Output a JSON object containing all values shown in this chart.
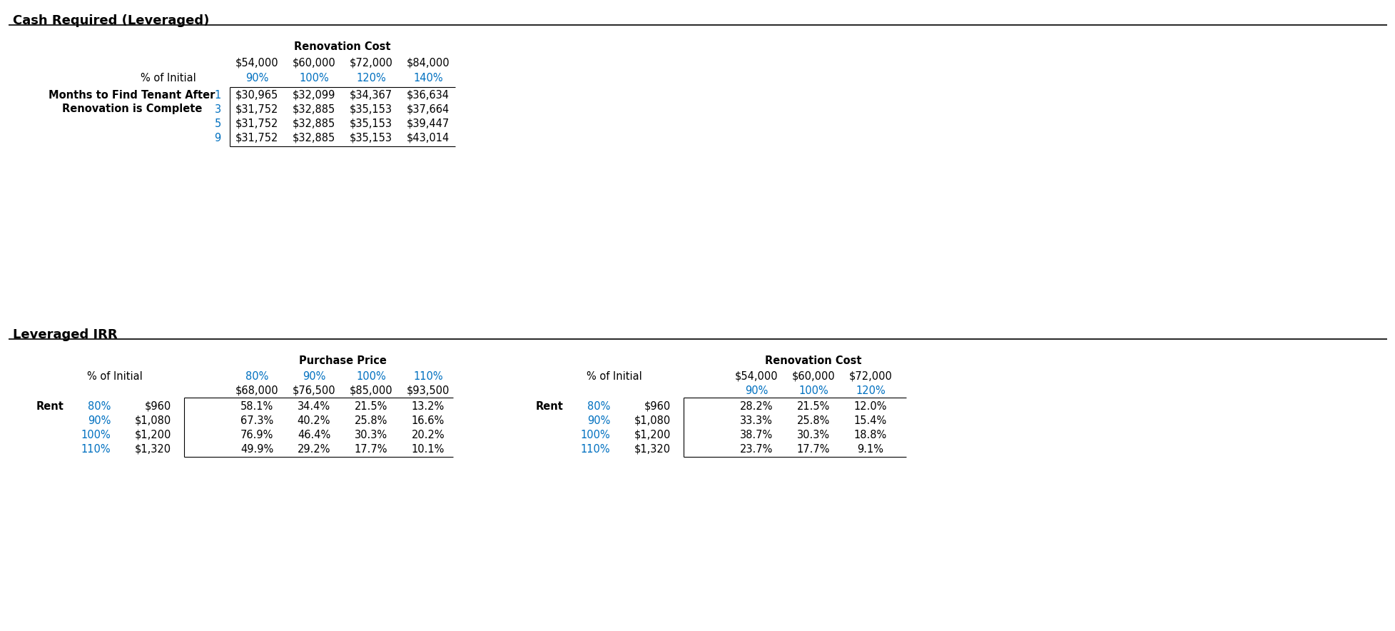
{
  "section1_title": "Cash Required (Leveraged)",
  "section2_title": "Leveraged IRR",
  "table1": {
    "header_group": "Renovation Cost",
    "col_dollars": [
      "$54,000",
      "$60,000",
      "$72,000",
      "$84,000"
    ],
    "col_pcts": [
      "90%",
      "100%",
      "120%",
      "140%"
    ],
    "row_label1": "Months to Find Tenant After",
    "row_label2": "Renovation is Complete",
    "pct_label": "% of Initial",
    "row_months": [
      "1",
      "3",
      "5",
      "9"
    ],
    "data": [
      [
        "$30,965",
        "$32,099",
        "$34,367",
        "$36,634"
      ],
      [
        "$31,752",
        "$32,885",
        "$35,153",
        "$37,664"
      ],
      [
        "$31,752",
        "$32,885",
        "$35,153",
        "$39,447"
      ],
      [
        "$31,752",
        "$32,885",
        "$35,153",
        "$43,014"
      ]
    ]
  },
  "table2_pp": {
    "header_group": "Purchase Price",
    "col_pcts": [
      "80%",
      "90%",
      "100%",
      "110%"
    ],
    "col_dollars": [
      "$68,000",
      "$76,500",
      "$85,000",
      "$93,500"
    ],
    "pct_label": "% of Initial",
    "row_label": "Rent",
    "row_pcts": [
      "80%",
      "90%",
      "100%",
      "110%"
    ],
    "row_dollars": [
      "$960",
      "$1,080",
      "$1,200",
      "$1,320"
    ],
    "data": [
      [
        "58.1%",
        "34.4%",
        "21.5%",
        "13.2%"
      ],
      [
        "67.3%",
        "40.2%",
        "25.8%",
        "16.6%"
      ],
      [
        "76.9%",
        "46.4%",
        "30.3%",
        "20.2%"
      ],
      [
        "49.9%",
        "29.2%",
        "17.7%",
        "10.1%"
      ]
    ]
  },
  "table2_rc": {
    "header_group": "Renovation Cost",
    "col_dollars": [
      "$54,000",
      "$60,000",
      "$72,000"
    ],
    "col_pcts": [
      "90%",
      "100%",
      "120%"
    ],
    "pct_label": "% of Initial",
    "row_label": "Rent",
    "row_pcts": [
      "80%",
      "90%",
      "100%",
      "110%"
    ],
    "row_dollars": [
      "$960",
      "$1,080",
      "$1,200",
      "$1,320"
    ],
    "data": [
      [
        "28.2%",
        "21.5%",
        "12.0%"
      ],
      [
        "33.3%",
        "25.8%",
        "15.4%"
      ],
      [
        "38.7%",
        "30.3%",
        "18.8%"
      ],
      [
        "23.7%",
        "17.7%",
        "9.1%"
      ]
    ]
  },
  "blue_color": "#0070C0",
  "black_color": "#000000",
  "bg_color": "#FFFFFF",
  "title_fontsize": 13,
  "header_fontsize": 10.5,
  "data_fontsize": 10.5,
  "label_fontsize": 10.5
}
